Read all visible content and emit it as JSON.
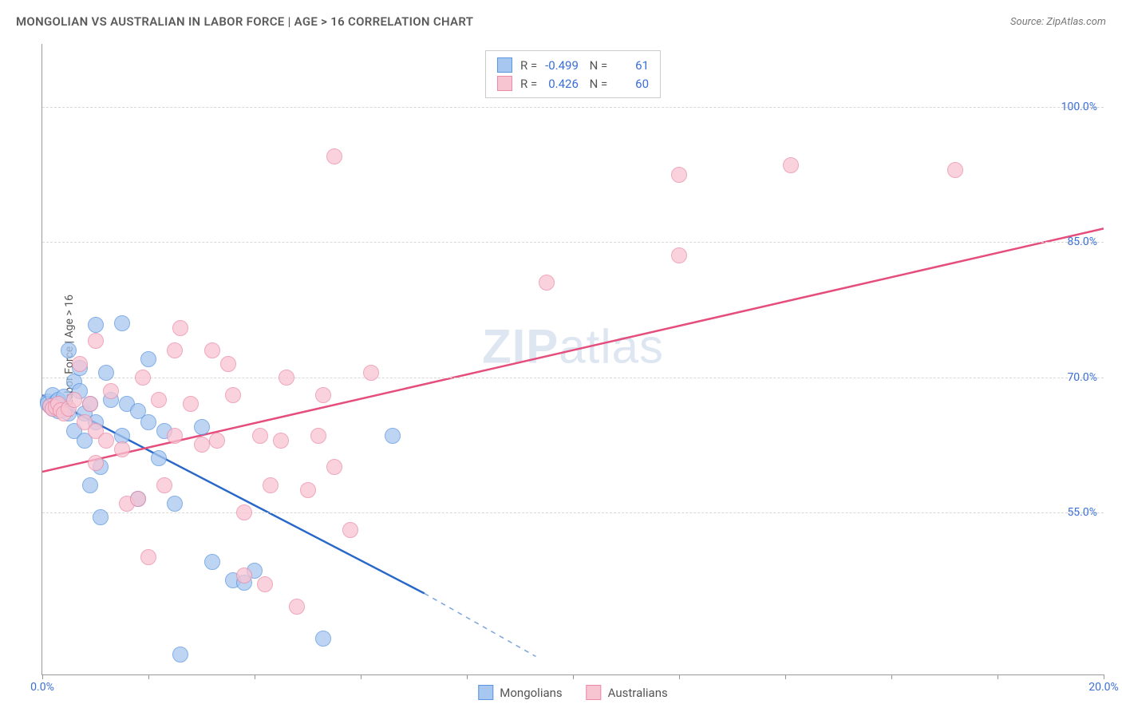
{
  "title": "MONGOLIAN VS AUSTRALIAN IN LABOR FORCE | AGE > 16 CORRELATION CHART",
  "source": "Source: ZipAtlas.com",
  "ylabel": "In Labor Force | Age > 16",
  "watermark_a": "ZIP",
  "watermark_b": "atlas",
  "chart": {
    "type": "scatter",
    "xlim": [
      0,
      20
    ],
    "ylim": [
      37,
      107
    ],
    "x_ticks": [
      0,
      2,
      4,
      6,
      8,
      10,
      12,
      14,
      16,
      18,
      20
    ],
    "x_tick_labels": {
      "0": "0.0%",
      "20": "20.0%"
    },
    "y_ticks": [
      55,
      70,
      85,
      100
    ],
    "y_tick_labels": [
      "55.0%",
      "70.0%",
      "85.0%",
      "100.0%"
    ],
    "grid_color": "#d8d8d8",
    "background_color": "#ffffff",
    "series": [
      {
        "name": "Mongolians",
        "fill": "#a8c7f0",
        "stroke": "#5a95e0",
        "line_color": "#2968c9",
        "R": "-0.499",
        "N": "61",
        "trend": {
          "x1": 0.0,
          "y1": 68.0,
          "x2_solid": 7.2,
          "y2_solid": 46.0,
          "x2_dash": 9.3,
          "y2_dash": 39.0
        },
        "points": [
          [
            0.1,
            67.3
          ],
          [
            0.1,
            67.0
          ],
          [
            0.15,
            66.8
          ],
          [
            0.2,
            68.0
          ],
          [
            0.2,
            66.5
          ],
          [
            0.25,
            67.2
          ],
          [
            0.3,
            67.5
          ],
          [
            0.3,
            66.2
          ],
          [
            0.4,
            67.8
          ],
          [
            0.5,
            73.0
          ],
          [
            0.5,
            66.0
          ],
          [
            0.6,
            69.5
          ],
          [
            0.6,
            64.0
          ],
          [
            0.7,
            68.5
          ],
          [
            0.7,
            71.0
          ],
          [
            0.8,
            66.0
          ],
          [
            0.8,
            63.0
          ],
          [
            0.9,
            58.0
          ],
          [
            0.9,
            67.0
          ],
          [
            1.0,
            75.8
          ],
          [
            1.0,
            65.0
          ],
          [
            1.1,
            60.0
          ],
          [
            1.1,
            54.5
          ],
          [
            1.2,
            70.5
          ],
          [
            1.3,
            67.5
          ],
          [
            1.5,
            76.0
          ],
          [
            1.5,
            63.5
          ],
          [
            1.6,
            67.0
          ],
          [
            1.8,
            66.2
          ],
          [
            1.8,
            56.5
          ],
          [
            2.0,
            72.0
          ],
          [
            2.0,
            65.0
          ],
          [
            2.2,
            61.0
          ],
          [
            2.3,
            64.0
          ],
          [
            2.5,
            56.0
          ],
          [
            2.6,
            39.2
          ],
          [
            3.0,
            64.5
          ],
          [
            3.2,
            49.5
          ],
          [
            3.6,
            47.5
          ],
          [
            3.8,
            47.2
          ],
          [
            4.0,
            48.5
          ],
          [
            5.3,
            41.0
          ],
          [
            6.6,
            63.5
          ]
        ]
      },
      {
        "name": "Australians",
        "fill": "#f7c4d2",
        "stroke": "#ec8aa6",
        "line_color": "#e54d7c",
        "R": "0.426",
        "N": "60",
        "trend": {
          "x1": 0.0,
          "y1": 59.5,
          "x2_solid": 20.0,
          "y2_solid": 86.5,
          "x2_dash": 20.0,
          "y2_dash": 86.5
        },
        "points": [
          [
            0.15,
            66.8
          ],
          [
            0.2,
            66.5
          ],
          [
            0.25,
            66.7
          ],
          [
            0.3,
            67.0
          ],
          [
            0.35,
            66.3
          ],
          [
            0.4,
            66.0
          ],
          [
            0.5,
            66.5
          ],
          [
            0.6,
            67.5
          ],
          [
            0.7,
            71.5
          ],
          [
            0.8,
            65.0
          ],
          [
            0.9,
            67.0
          ],
          [
            1.0,
            74.0
          ],
          [
            1.0,
            64.0
          ],
          [
            1.0,
            60.5
          ],
          [
            1.2,
            63.0
          ],
          [
            1.3,
            68.5
          ],
          [
            1.5,
            62.0
          ],
          [
            1.6,
            56.0
          ],
          [
            1.8,
            56.5
          ],
          [
            1.9,
            70.0
          ],
          [
            2.0,
            50.0
          ],
          [
            2.2,
            67.5
          ],
          [
            2.3,
            58.0
          ],
          [
            2.5,
            73.0
          ],
          [
            2.5,
            63.5
          ],
          [
            2.6,
            75.5
          ],
          [
            2.8,
            67.0
          ],
          [
            3.0,
            62.5
          ],
          [
            3.2,
            73.0
          ],
          [
            3.3,
            63.0
          ],
          [
            3.5,
            71.5
          ],
          [
            3.6,
            68.0
          ],
          [
            3.8,
            55.0
          ],
          [
            3.8,
            48.0
          ],
          [
            4.1,
            63.5
          ],
          [
            4.2,
            47.0
          ],
          [
            4.3,
            58.0
          ],
          [
            4.5,
            63.0
          ],
          [
            4.6,
            70.0
          ],
          [
            4.8,
            44.5
          ],
          [
            5.0,
            57.5
          ],
          [
            5.2,
            63.5
          ],
          [
            5.3,
            68.0
          ],
          [
            5.5,
            60.0
          ],
          [
            5.5,
            94.5
          ],
          [
            5.8,
            53.0
          ],
          [
            6.2,
            70.5
          ],
          [
            9.5,
            80.5
          ],
          [
            12.0,
            92.5
          ],
          [
            12.0,
            83.5
          ],
          [
            14.1,
            93.5
          ],
          [
            17.2,
            93.0
          ]
        ]
      }
    ]
  }
}
